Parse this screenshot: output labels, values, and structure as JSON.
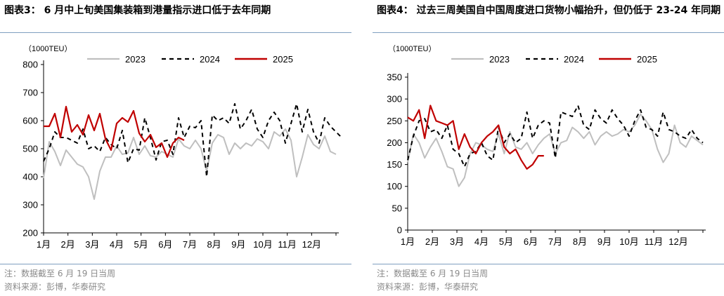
{
  "panels": [
    {
      "title": "图表3： 6 月中上旬美国集装箱到港量指示进口低于去年同期",
      "note": "注：数据截至 6 月 19 日当周",
      "source": "资料来源：彭博，华泰研究"
    },
    {
      "title": "图表4： 过去三周美国自中国周度进口货物小幅抬升，但仍低于 23-24 年同期",
      "note": "注：数据截至 6 月 19 日当周",
      "source": "资料来源：彭博，华泰研究"
    }
  ],
  "colors": {
    "2023": "#bfbfbf",
    "2024": "#000000",
    "2025": "#c00000",
    "axis": "#000000",
    "rule": "#7f9fbf"
  },
  "chart_data": [
    {
      "type": "line",
      "unit": "（1000TEU）",
      "ylim": [
        200,
        800
      ],
      "yticks": [
        200,
        300,
        400,
        500,
        600,
        700,
        800
      ],
      "xticks": [
        "1月",
        "2月",
        "3月",
        "4月",
        "5月",
        "6月",
        "7月",
        "8月",
        "9月",
        "10月",
        "11月",
        "12月"
      ],
      "legend_position": "top",
      "series": [
        {
          "name": "2023",
          "style": "solid",
          "values": [
            395,
            525,
            490,
            440,
            495,
            470,
            445,
            435,
            400,
            320,
            420,
            470,
            470,
            510,
            480,
            485,
            540,
            480,
            510,
            475,
            470,
            490,
            480,
            470,
            535,
            510,
            500,
            530,
            500,
            420,
            520,
            550,
            540,
            480,
            520,
            500,
            520,
            510,
            535,
            525,
            500,
            560,
            545,
            570,
            530,
            400,
            470,
            550,
            515,
            500,
            545,
            490,
            480
          ]
        },
        {
          "name": "2024",
          "style": "dash",
          "values": [
            455,
            500,
            560,
            540,
            540,
            530,
            520,
            570,
            500,
            510,
            490,
            540,
            515,
            500,
            565,
            450,
            500,
            495,
            610,
            540,
            460,
            525,
            530,
            480,
            610,
            540,
            580,
            575,
            600,
            400,
            620,
            600,
            610,
            590,
            660,
            570,
            600,
            640,
            570,
            540,
            600,
            630,
            600,
            520,
            590,
            660,
            560,
            640,
            560,
            520,
            610,
            580,
            560,
            540
          ]
        },
        {
          "name": "2025",
          "style": "solid",
          "values": [
            580,
            580,
            625,
            540,
            650,
            560,
            585,
            550,
            620,
            565,
            625,
            535,
            495,
            590,
            610,
            595,
            635,
            555,
            525,
            550,
            505,
            520,
            470,
            520,
            540,
            530
          ]
        }
      ]
    },
    {
      "type": "line",
      "unit": "（1000TEU）",
      "ylim": [
        0,
        350
      ],
      "yticks": [
        0,
        50,
        100,
        150,
        200,
        250,
        300,
        350
      ],
      "xticks": [
        "1月",
        "2月",
        "3月",
        "4月",
        "5月",
        "6月",
        "7月",
        "8月",
        "9月",
        "10月",
        "11月",
        "12月"
      ],
      "legend_position": "top",
      "series": [
        {
          "name": "2023",
          "style": "solid",
          "values": [
            155,
            220,
            200,
            165,
            190,
            210,
            180,
            145,
            140,
            100,
            120,
            175,
            200,
            195,
            185,
            180,
            220,
            175,
            225,
            190,
            185,
            200,
            175,
            195,
            210,
            220,
            175,
            200,
            205,
            235,
            225,
            210,
            225,
            195,
            215,
            225,
            215,
            220,
            230,
            225,
            240,
            265,
            250,
            230,
            185,
            155,
            175,
            240,
            200,
            190,
            215,
            205,
            195
          ]
        },
        {
          "name": "2024",
          "style": "dash",
          "values": [
            160,
            215,
            250,
            255,
            225,
            230,
            210,
            240,
            185,
            175,
            145,
            175,
            180,
            200,
            170,
            160,
            235,
            200,
            220,
            200,
            210,
            270,
            210,
            240,
            250,
            245,
            165,
            270,
            265,
            260,
            285,
            240,
            230,
            275,
            255,
            245,
            275,
            255,
            240,
            215,
            250,
            275,
            235,
            230,
            215,
            270,
            230,
            225,
            215,
            210,
            230,
            210,
            200
          ]
        },
        {
          "name": "2025",
          "style": "solid",
          "values": [
            258,
            250,
            275,
            210,
            285,
            250,
            245,
            240,
            250,
            185,
            220,
            190,
            175,
            200,
            215,
            225,
            240,
            190,
            175,
            185,
            160,
            140,
            150,
            170,
            170
          ]
        }
      ]
    }
  ]
}
